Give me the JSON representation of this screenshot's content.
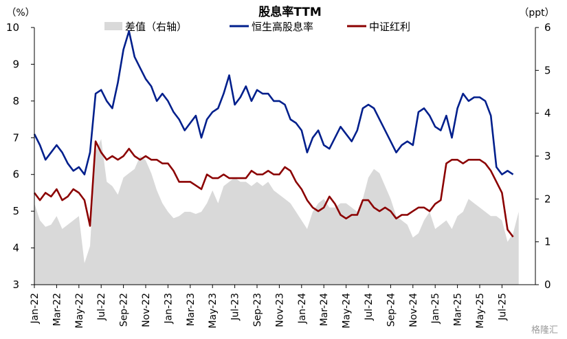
{
  "chart_data": {
    "type": "line",
    "title": "股息率TTM",
    "left_unit": "（%）",
    "right_unit": "（ppt）",
    "left_axis": {
      "min": 3,
      "max": 10,
      "ticks": [
        "3",
        "4",
        "5",
        "6",
        "7",
        "8",
        "9",
        "10"
      ]
    },
    "right_axis": {
      "min": 0,
      "max": 6,
      "ticks": [
        "0",
        "1",
        "2",
        "3",
        "4",
        "5",
        "6"
      ]
    },
    "x_ticks": [
      "Jan-22",
      "Mar-22",
      "May-22",
      "Jul-22",
      "Sep-22",
      "Nov-22",
      "Jan-23",
      "Mar-23",
      "May-23",
      "Jul-23",
      "Sep-23",
      "Nov-23",
      "Jan-24",
      "Mar-24",
      "May-24",
      "Jul-24",
      "Sep-24",
      "Nov-24",
      "Jan-25",
      "Mar-25",
      "May-25",
      "Jul-25"
    ],
    "x_month_range": [
      0,
      45
    ],
    "series": [
      {
        "name": "差值（右轴）",
        "kind": "area",
        "axis": "right",
        "color": "#d9d9d9",
        "points": [
          [
            0,
            1.9
          ],
          [
            0.5,
            1.5
          ],
          [
            1,
            1.35
          ],
          [
            1.5,
            1.4
          ],
          [
            2,
            1.6
          ],
          [
            2.5,
            1.3
          ],
          [
            3,
            1.4
          ],
          [
            3.5,
            1.5
          ],
          [
            4,
            1.6
          ],
          [
            4.5,
            0.5
          ],
          [
            5,
            0.9
          ],
          [
            5.5,
            3.1
          ],
          [
            6,
            3.4
          ],
          [
            6.5,
            2.4
          ],
          [
            7,
            2.3
          ],
          [
            7.5,
            2.1
          ],
          [
            8,
            2.5
          ],
          [
            8.5,
            2.6
          ],
          [
            9,
            2.7
          ],
          [
            9.5,
            3.0
          ],
          [
            10,
            2.9
          ],
          [
            10.5,
            2.6
          ],
          [
            11,
            2.2
          ],
          [
            11.5,
            1.9
          ],
          [
            12,
            1.7
          ],
          [
            12.5,
            1.55
          ],
          [
            13,
            1.6
          ],
          [
            13.5,
            1.7
          ],
          [
            14,
            1.7
          ],
          [
            14.5,
            1.65
          ],
          [
            15,
            1.7
          ],
          [
            15.5,
            1.9
          ],
          [
            16,
            2.2
          ],
          [
            16.5,
            1.9
          ],
          [
            17,
            2.3
          ],
          [
            17.5,
            2.4
          ],
          [
            18,
            2.5
          ],
          [
            18.5,
            2.4
          ],
          [
            19,
            2.4
          ],
          [
            19.5,
            2.3
          ],
          [
            20,
            2.4
          ],
          [
            20.5,
            2.3
          ],
          [
            21,
            2.4
          ],
          [
            21.5,
            2.2
          ],
          [
            22,
            2.1
          ],
          [
            22.5,
            2.0
          ],
          [
            23,
            1.9
          ],
          [
            23.5,
            1.7
          ],
          [
            24,
            1.5
          ],
          [
            24.5,
            1.3
          ],
          [
            25,
            1.7
          ],
          [
            25.5,
            1.9
          ],
          [
            26,
            2.0
          ],
          [
            26.5,
            1.8
          ],
          [
            27,
            1.8
          ],
          [
            27.5,
            1.9
          ],
          [
            28,
            1.9
          ],
          [
            28.5,
            1.8
          ],
          [
            29,
            1.7
          ],
          [
            29.5,
            2.0
          ],
          [
            30,
            2.5
          ],
          [
            30.5,
            2.7
          ],
          [
            31,
            2.6
          ],
          [
            31.5,
            2.3
          ],
          [
            32,
            2.0
          ],
          [
            32.5,
            1.6
          ],
          [
            33,
            1.5
          ],
          [
            33.5,
            1.4
          ],
          [
            34,
            1.1
          ],
          [
            34.5,
            1.2
          ],
          [
            35,
            1.5
          ],
          [
            35.5,
            1.7
          ],
          [
            36,
            1.3
          ],
          [
            36.5,
            1.4
          ],
          [
            37,
            1.5
          ],
          [
            37.5,
            1.3
          ],
          [
            38,
            1.6
          ],
          [
            38.5,
            1.7
          ],
          [
            39,
            2.0
          ],
          [
            39.5,
            1.9
          ],
          [
            40,
            1.8
          ],
          [
            40.5,
            1.7
          ],
          [
            41,
            1.6
          ],
          [
            41.5,
            1.6
          ],
          [
            42,
            1.5
          ],
          [
            42.5,
            1.0
          ],
          [
            43,
            1.2
          ],
          [
            43.5,
            1.7
          ]
        ]
      },
      {
        "name": "恒生高股息率",
        "kind": "line",
        "axis": "left",
        "color": "#001f8c",
        "points": [
          [
            0,
            7.1
          ],
          [
            0.5,
            6.8
          ],
          [
            1,
            6.4
          ],
          [
            1.5,
            6.6
          ],
          [
            2,
            6.8
          ],
          [
            2.5,
            6.6
          ],
          [
            3,
            6.3
          ],
          [
            3.5,
            6.1
          ],
          [
            4,
            6.2
          ],
          [
            4.5,
            6.0
          ],
          [
            5,
            6.6
          ],
          [
            5.5,
            8.2
          ],
          [
            6,
            8.3
          ],
          [
            6.5,
            8.0
          ],
          [
            7,
            7.8
          ],
          [
            7.5,
            8.5
          ],
          [
            8,
            9.4
          ],
          [
            8.5,
            9.9
          ],
          [
            9,
            9.2
          ],
          [
            9.5,
            8.9
          ],
          [
            10,
            8.6
          ],
          [
            10.5,
            8.4
          ],
          [
            11,
            8.0
          ],
          [
            11.5,
            8.2
          ],
          [
            12,
            8.0
          ],
          [
            12.5,
            7.7
          ],
          [
            13,
            7.5
          ],
          [
            13.5,
            7.2
          ],
          [
            14,
            7.4
          ],
          [
            14.5,
            7.6
          ],
          [
            15,
            7.0
          ],
          [
            15.5,
            7.5
          ],
          [
            16,
            7.7
          ],
          [
            16.5,
            7.8
          ],
          [
            17,
            8.2
          ],
          [
            17.5,
            8.7
          ],
          [
            18,
            7.9
          ],
          [
            18.5,
            8.1
          ],
          [
            19,
            8.4
          ],
          [
            19.5,
            8.0
          ],
          [
            20,
            8.3
          ],
          [
            20.5,
            8.2
          ],
          [
            21,
            8.2
          ],
          [
            21.5,
            8.0
          ],
          [
            22,
            8.0
          ],
          [
            22.5,
            7.9
          ],
          [
            23,
            7.5
          ],
          [
            23.5,
            7.4
          ],
          [
            24,
            7.2
          ],
          [
            24.5,
            6.6
          ],
          [
            25,
            7.0
          ],
          [
            25.5,
            7.2
          ],
          [
            26,
            6.8
          ],
          [
            26.5,
            6.7
          ],
          [
            27,
            7.0
          ],
          [
            27.5,
            7.3
          ],
          [
            28,
            7.1
          ],
          [
            28.5,
            6.9
          ],
          [
            29,
            7.2
          ],
          [
            29.5,
            7.8
          ],
          [
            30,
            7.9
          ],
          [
            30.5,
            7.8
          ],
          [
            31,
            7.5
          ],
          [
            31.5,
            7.2
          ],
          [
            32,
            6.9
          ],
          [
            32.5,
            6.6
          ],
          [
            33,
            6.8
          ],
          [
            33.5,
            6.9
          ],
          [
            34,
            6.8
          ],
          [
            34.5,
            7.7
          ],
          [
            35,
            7.8
          ],
          [
            35.5,
            7.6
          ],
          [
            36,
            7.3
          ],
          [
            36.5,
            7.2
          ],
          [
            37,
            7.6
          ],
          [
            37.5,
            7.0
          ],
          [
            38,
            7.8
          ],
          [
            38.5,
            8.2
          ],
          [
            39,
            8.0
          ],
          [
            39.5,
            8.1
          ],
          [
            40,
            8.1
          ],
          [
            40.5,
            8.0
          ],
          [
            41,
            7.6
          ],
          [
            41.5,
            6.2
          ],
          [
            42,
            6.0
          ],
          [
            42.5,
            6.1
          ],
          [
            43,
            6.0
          ]
        ]
      },
      {
        "name": "中证红利",
        "kind": "line",
        "axis": "left",
        "color": "#8b0000",
        "points": [
          [
            0,
            5.5
          ],
          [
            0.5,
            5.3
          ],
          [
            1,
            5.5
          ],
          [
            1.5,
            5.4
          ],
          [
            2,
            5.6
          ],
          [
            2.5,
            5.3
          ],
          [
            3,
            5.4
          ],
          [
            3.5,
            5.6
          ],
          [
            4,
            5.5
          ],
          [
            4.5,
            5.3
          ],
          [
            5,
            4.6
          ],
          [
            5.5,
            6.9
          ],
          [
            6,
            6.6
          ],
          [
            6.5,
            6.4
          ],
          [
            7,
            6.5
          ],
          [
            7.5,
            6.4
          ],
          [
            8,
            6.5
          ],
          [
            8.5,
            6.7
          ],
          [
            9,
            6.5
          ],
          [
            9.5,
            6.4
          ],
          [
            10,
            6.5
          ],
          [
            10.5,
            6.4
          ],
          [
            11,
            6.4
          ],
          [
            11.5,
            6.3
          ],
          [
            12,
            6.3
          ],
          [
            12.5,
            6.1
          ],
          [
            13,
            5.8
          ],
          [
            13.5,
            5.8
          ],
          [
            14,
            5.8
          ],
          [
            14.5,
            5.7
          ],
          [
            15,
            5.6
          ],
          [
            15.5,
            6.0
          ],
          [
            16,
            5.9
          ],
          [
            16.5,
            5.9
          ],
          [
            17,
            6.0
          ],
          [
            17.5,
            5.9
          ],
          [
            18,
            5.9
          ],
          [
            18.5,
            5.9
          ],
          [
            19,
            5.9
          ],
          [
            19.5,
            6.1
          ],
          [
            20,
            6.0
          ],
          [
            20.5,
            6.0
          ],
          [
            21,
            6.1
          ],
          [
            21.5,
            6.0
          ],
          [
            22,
            6.0
          ],
          [
            22.5,
            6.2
          ],
          [
            23,
            6.1
          ],
          [
            23.5,
            5.8
          ],
          [
            24,
            5.6
          ],
          [
            24.5,
            5.3
          ],
          [
            25,
            5.1
          ],
          [
            25.5,
            5.0
          ],
          [
            26,
            5.1
          ],
          [
            26.5,
            5.4
          ],
          [
            27,
            5.2
          ],
          [
            27.5,
            4.9
          ],
          [
            28,
            4.8
          ],
          [
            28.5,
            4.9
          ],
          [
            29,
            4.9
          ],
          [
            29.5,
            5.3
          ],
          [
            30,
            5.3
          ],
          [
            30.5,
            5.1
          ],
          [
            31,
            5.0
          ],
          [
            31.5,
            5.1
          ],
          [
            32,
            5.0
          ],
          [
            32.5,
            4.8
          ],
          [
            33,
            4.9
          ],
          [
            33.5,
            4.9
          ],
          [
            34,
            5.0
          ],
          [
            34.5,
            5.1
          ],
          [
            35,
            5.1
          ],
          [
            35.5,
            5.0
          ],
          [
            36,
            5.2
          ],
          [
            36.5,
            5.3
          ],
          [
            37,
            6.3
          ],
          [
            37.5,
            6.4
          ],
          [
            38,
            6.4
          ],
          [
            38.5,
            6.3
          ],
          [
            39,
            6.4
          ],
          [
            39.5,
            6.4
          ],
          [
            40,
            6.4
          ],
          [
            40.5,
            6.3
          ],
          [
            41,
            6.1
          ],
          [
            41.5,
            5.8
          ],
          [
            42,
            5.5
          ],
          [
            42.5,
            4.5
          ],
          [
            43,
            4.3
          ]
        ]
      }
    ],
    "legend_placement": "top-center",
    "grid": false
  },
  "watermark": "格隆汇"
}
